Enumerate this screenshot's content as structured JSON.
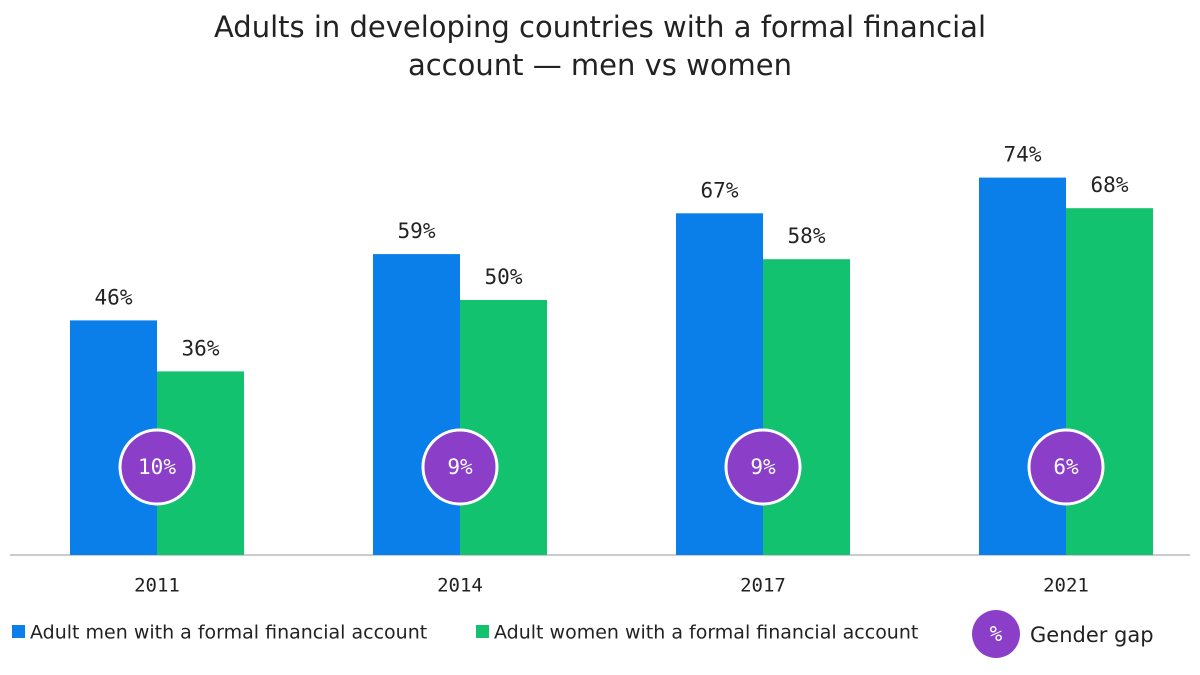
{
  "chart_data": {
    "type": "bar",
    "title": "Adults in developing countries with a formal financial account — men vs women",
    "categories": [
      "2011",
      "2014",
      "2017",
      "2021"
    ],
    "series": [
      {
        "name": "Adult men with a formal financial account",
        "color": "#0a7fe9",
        "values": [
          46,
          59,
          67,
          74
        ],
        "value_labels": [
          "46%",
          "59%",
          "67%",
          "74%"
        ]
      },
      {
        "name": "Adult women with a formal financial account",
        "color": "#12c26f",
        "values": [
          36,
          50,
          58,
          68
        ],
        "value_labels": [
          "36%",
          "50%",
          "58%",
          "68%"
        ]
      }
    ],
    "gender_gap": {
      "name": "Gender gap",
      "symbol": "%",
      "color": "#8b3fc8",
      "values": [
        10,
        9,
        9,
        6
      ],
      "value_labels": [
        "10%",
        "9%",
        "9%",
        "6%"
      ]
    }
  }
}
